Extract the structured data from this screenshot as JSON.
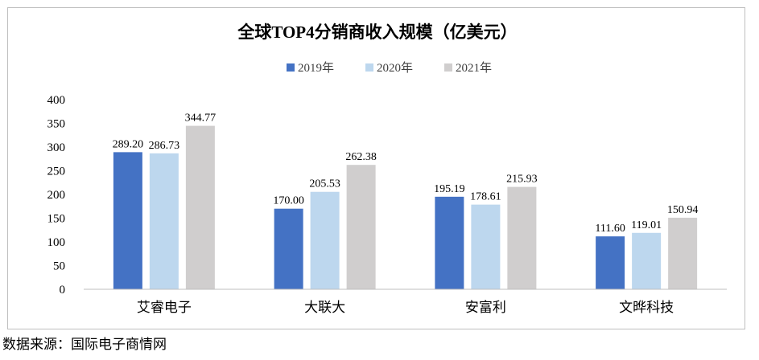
{
  "chart_data": {
    "type": "bar",
    "title": "全球TOP4分销商收入规模（亿美元）",
    "categories": [
      "艾睿电子",
      "大联大",
      "安富利",
      "文晔科技"
    ],
    "series": [
      {
        "name": "2019年",
        "color": "#4472c4",
        "values": [
          289.2,
          170.0,
          195.19,
          111.6
        ]
      },
      {
        "name": "2020年",
        "color": "#bdd7ee",
        "values": [
          286.73,
          205.53,
          178.61,
          119.01
        ]
      },
      {
        "name": "2021年",
        "color": "#d0cece",
        "values": [
          344.77,
          262.38,
          215.93,
          150.94
        ]
      }
    ],
    "ylim": [
      0,
      400
    ],
    "yticks": [
      0,
      50,
      100,
      150,
      200,
      250,
      300,
      350,
      400
    ],
    "xlabel": "",
    "ylabel": "",
    "grid": false,
    "legend_position": "top-center"
  },
  "source_note": "数据来源：国际电子商情网"
}
